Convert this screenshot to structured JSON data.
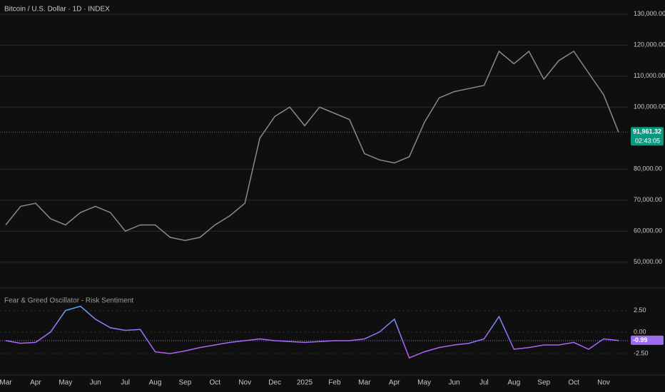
{
  "chart_data": [
    {
      "type": "line",
      "title": "Bitcoin / U.S. Dollar · 1D · INDEX",
      "categories": [
        "Mar",
        null,
        "Apr",
        null,
        "May",
        null,
        "Jun",
        null,
        "Jul",
        null,
        "Aug",
        null,
        "Sep",
        null,
        "Oct",
        null,
        "Nov",
        null,
        "Dec",
        null,
        "2025",
        null,
        "Feb",
        null,
        "Mar",
        null,
        "Apr",
        null,
        "May",
        null,
        "Jun",
        null,
        "Jul",
        null,
        "Aug",
        null,
        "Sep",
        null,
        "Oct",
        null,
        "Nov",
        null
      ],
      "series": [
        {
          "color": "#8a8a8a",
          "values": [
            62000,
            68000,
            69000,
            64000,
            62000,
            66000,
            68000,
            66000,
            60000,
            62000,
            62000,
            58000,
            57000,
            58000,
            62000,
            65000,
            69000,
            90000,
            97000,
            100000,
            94000,
            100000,
            98000,
            96000,
            85000,
            83000,
            82000,
            84000,
            95000,
            103000,
            105000,
            106000,
            107000,
            118000,
            114000,
            118000,
            109000,
            115000,
            118000,
            111000,
            104000,
            91961.32
          ]
        }
      ],
      "value_labels": {
        "41": "91,961.32"
      },
      "countdown": "02:43:05",
      "ylim": [
        42600,
        134100
      ],
      "yticks": [
        {
          "value": 50000,
          "label": "50,000.00"
        },
        {
          "value": 60000,
          "label": "60,000.00"
        },
        {
          "value": 70000,
          "label": "70,000.00"
        },
        {
          "value": 80000,
          "label": "80,000.00"
        },
        {
          "value": 100000,
          "label": "100,000.00"
        },
        {
          "value": 110000,
          "label": "110,000.00"
        },
        {
          "value": 120000,
          "label": "120,000.00"
        },
        {
          "value": 130000,
          "label": "130,000.00"
        }
      ],
      "grid": true,
      "last_color": "#089981"
    },
    {
      "type": "line",
      "title": "Fear & Greed Oscillator - Risk Sentiment",
      "series": [
        {
          "colors": [
            "#40c4ff",
            "#9575ff",
            "#e040fb"
          ],
          "values": [
            -1,
            -1.3,
            -1.2,
            0,
            2.5,
            3,
            1.5,
            0.5,
            0.2,
            0.3,
            -2.3,
            -2.5,
            -2.2,
            -1.8,
            -1.5,
            -1.2,
            -1,
            -0.8,
            -1,
            -1.1,
            -1.2,
            -1.1,
            -1,
            -1,
            -0.8,
            0,
            1.5,
            -3,
            -2.3,
            -1.8,
            -1.5,
            -1.3,
            -0.8,
            1.8,
            -2,
            -1.8,
            -1.5,
            -1.5,
            -1.2,
            -2,
            -0.8,
            -0.99
          ]
        }
      ],
      "value_labels": {
        "41": "-0.99"
      },
      "ylim": [
        -4.9,
        4.8
      ],
      "yticks": [
        {
          "value": 2.5,
          "label": "2.50"
        },
        {
          "value": 0,
          "label": "0.00"
        },
        {
          "value": -2.5,
          "label": "-2.50"
        }
      ],
      "grid": true,
      "last_color": "#9c6cf0"
    }
  ]
}
